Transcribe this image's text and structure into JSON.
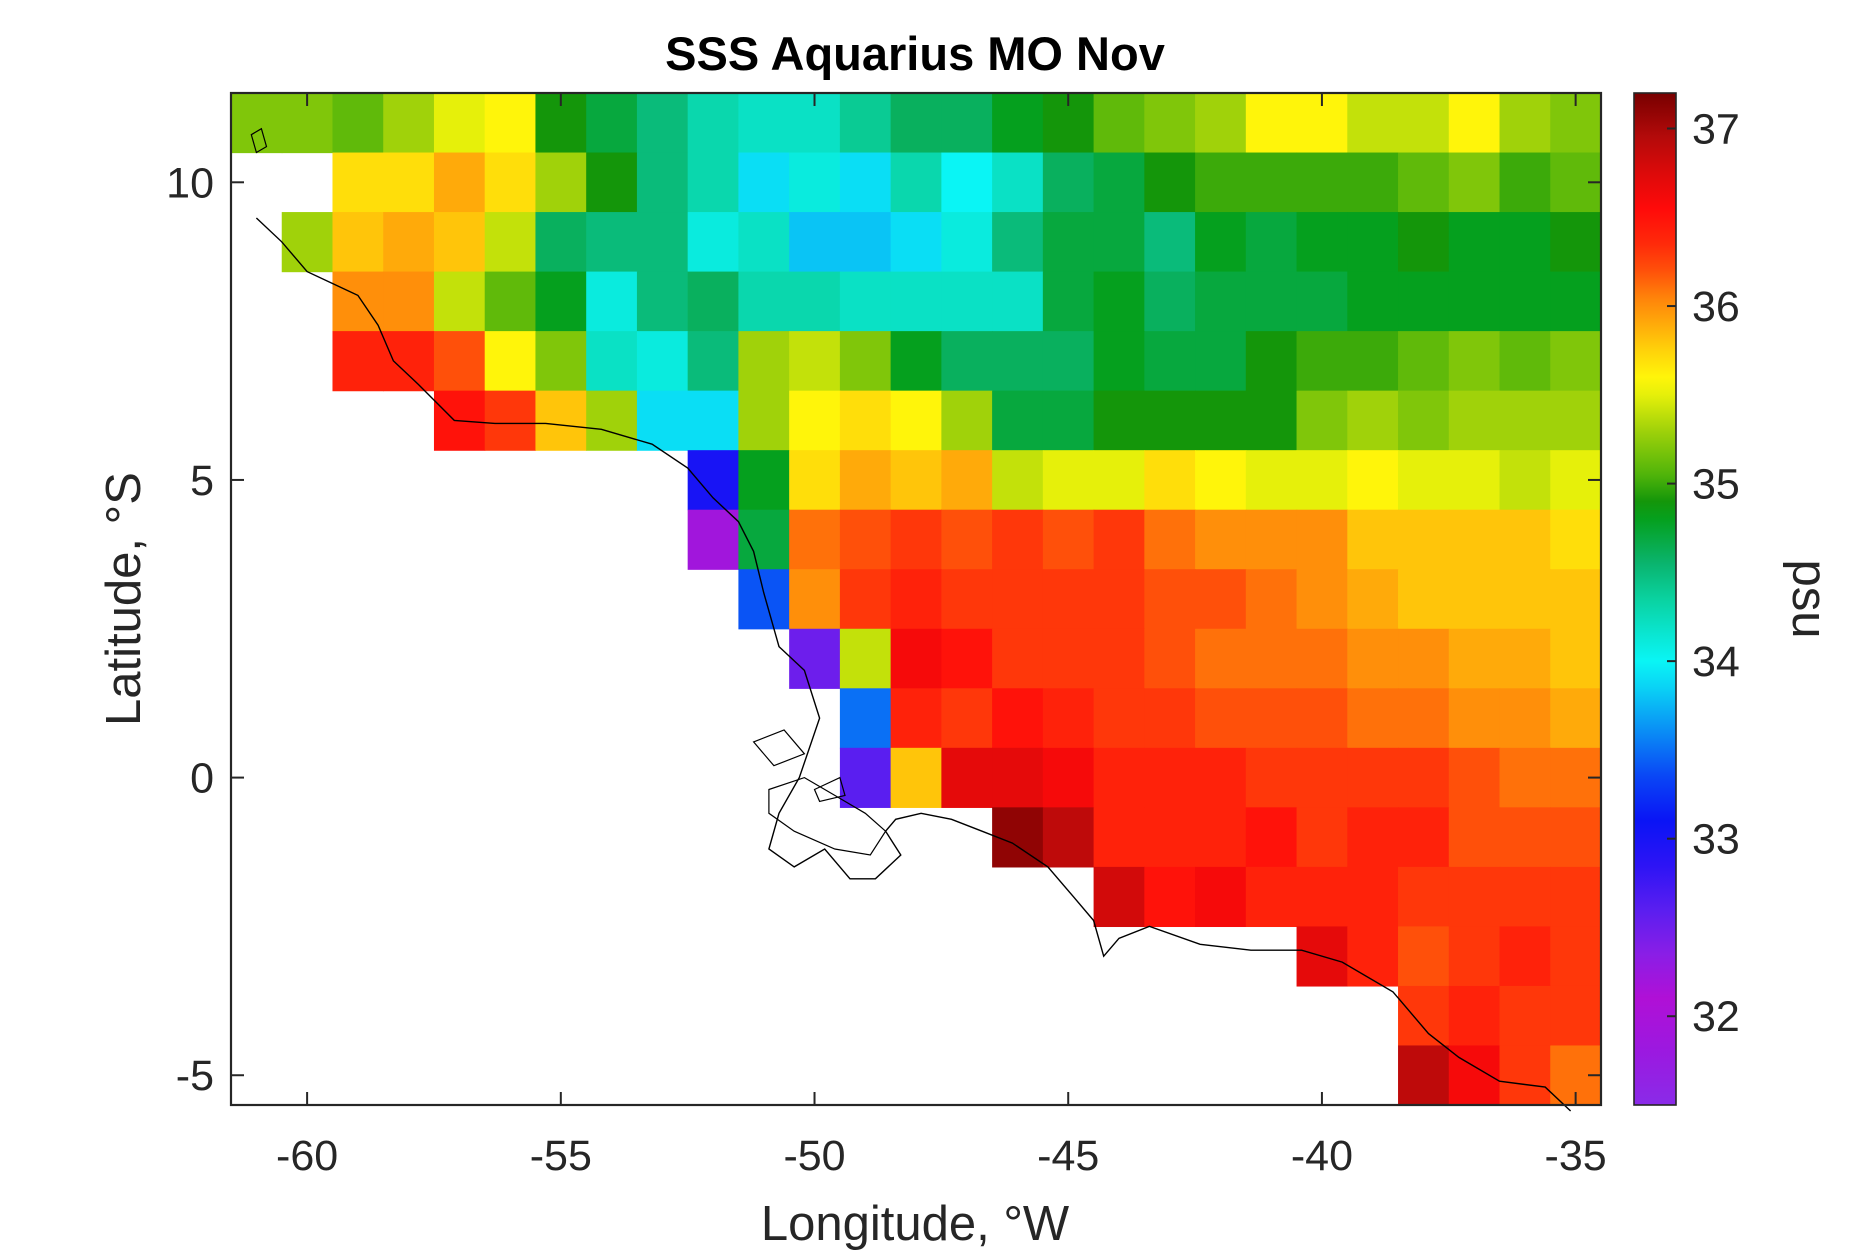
{
  "chart_data": {
    "type": "heatmap",
    "title": "SSS Aquarius MO Nov",
    "xlabel": "Longitude, °W",
    "ylabel": "Latitude, °S",
    "colorbar_label": "psu",
    "xlim": [
      -61.5,
      -34.5
    ],
    "ylim": [
      -5.5,
      11.5
    ],
    "clim": [
      31.5,
      37.2
    ],
    "x_ticks": [
      -60,
      -55,
      -50,
      -45,
      -40,
      -35
    ],
    "y_ticks": [
      -5,
      0,
      5,
      10
    ],
    "colorbar_ticks": [
      32,
      33,
      34,
      35,
      36,
      37
    ],
    "x_tick_labels": [
      "-60",
      "-55",
      "-50",
      "-45",
      "-40",
      "-35"
    ],
    "y_tick_labels": [
      "-5",
      "0",
      "5",
      "10"
    ],
    "colorbar_tick_labels": [
      "32",
      "33",
      "34",
      "35",
      "36",
      "37"
    ],
    "grid": false,
    "cell_size_deg": 1,
    "lon_centers": [
      -61,
      -60,
      -59,
      -58,
      -57,
      -56,
      -55,
      -54,
      -53,
      -52,
      -51,
      -50,
      -49,
      -48,
      -47,
      -46,
      -45,
      -44,
      -43,
      -42,
      -41,
      -40,
      -39,
      -38,
      -37,
      -36,
      -35
    ],
    "lat_centers": [
      11,
      10,
      9,
      8,
      7,
      6,
      5,
      4,
      3,
      2,
      1,
      0,
      -1,
      -2,
      -3,
      -4,
      -5
    ],
    "values": [
      [
        35.2,
        35.2,
        35.1,
        35.3,
        35.5,
        35.6,
        34.9,
        34.7,
        34.5,
        34.3,
        34.2,
        34.2,
        34.4,
        34.6,
        34.6,
        34.8,
        34.9,
        35.1,
        35.2,
        35.3,
        35.6,
        35.6,
        35.4,
        35.4,
        35.6,
        35.3,
        35.2
      ],
      [
        null,
        null,
        35.7,
        35.7,
        35.9,
        35.7,
        35.3,
        34.9,
        34.5,
        34.3,
        33.9,
        34.1,
        33.9,
        34.3,
        34.0,
        34.2,
        34.6,
        34.7,
        34.9,
        35.0,
        35.0,
        35.0,
        35.0,
        35.1,
        35.2,
        35.0,
        35.1
      ],
      [
        null,
        35.3,
        35.8,
        35.9,
        35.8,
        35.4,
        34.6,
        34.5,
        34.5,
        34.1,
        34.2,
        33.8,
        33.8,
        33.9,
        34.1,
        34.5,
        34.7,
        34.7,
        34.5,
        34.8,
        34.7,
        34.8,
        34.8,
        34.9,
        34.8,
        34.8,
        34.9
      ],
      [
        null,
        null,
        36.0,
        36.0,
        35.4,
        35.1,
        34.8,
        34.1,
        34.5,
        34.6,
        34.3,
        34.3,
        34.2,
        34.2,
        34.2,
        34.2,
        34.7,
        34.8,
        34.6,
        34.7,
        34.7,
        34.7,
        34.8,
        34.8,
        34.8,
        34.8,
        34.8
      ],
      [
        null,
        null,
        36.4,
        36.4,
        36.2,
        35.6,
        35.2,
        34.2,
        34.1,
        34.5,
        35.3,
        35.4,
        35.2,
        34.8,
        34.6,
        34.6,
        34.6,
        34.8,
        34.7,
        34.7,
        34.9,
        35.0,
        35.0,
        35.1,
        35.2,
        35.1,
        35.2
      ],
      [
        null,
        null,
        null,
        null,
        36.5,
        36.3,
        35.8,
        35.3,
        33.9,
        33.9,
        35.3,
        35.6,
        35.7,
        35.6,
        35.3,
        34.7,
        34.7,
        34.9,
        34.9,
        34.9,
        34.9,
        35.2,
        35.3,
        35.2,
        35.3,
        35.3,
        35.3
      ],
      [
        null,
        null,
        null,
        null,
        null,
        null,
        null,
        null,
        null,
        33.0,
        34.8,
        35.7,
        35.9,
        35.8,
        35.9,
        35.4,
        35.5,
        35.5,
        35.7,
        35.6,
        35.5,
        35.5,
        35.6,
        35.5,
        35.5,
        35.4,
        35.5
      ],
      [
        null,
        null,
        null,
        null,
        null,
        null,
        null,
        null,
        null,
        32.2,
        34.7,
        36.1,
        36.2,
        36.3,
        36.2,
        36.3,
        36.2,
        36.3,
        36.1,
        36.0,
        36.0,
        36.0,
        35.8,
        35.8,
        35.8,
        35.8,
        35.7
      ],
      [
        null,
        null,
        null,
        null,
        null,
        null,
        null,
        null,
        null,
        null,
        33.4,
        36.0,
        36.3,
        36.4,
        36.3,
        36.3,
        36.3,
        36.3,
        36.2,
        36.2,
        36.1,
        36.0,
        35.9,
        35.8,
        35.8,
        35.8,
        35.8
      ],
      [
        null,
        null,
        null,
        null,
        null,
        null,
        null,
        null,
        null,
        null,
        null,
        32.5,
        35.4,
        36.6,
        36.5,
        36.3,
        36.3,
        36.3,
        36.2,
        36.1,
        36.1,
        36.1,
        36.0,
        36.0,
        35.9,
        35.9,
        35.8
      ],
      [
        null,
        null,
        null,
        null,
        null,
        null,
        null,
        null,
        null,
        null,
        null,
        null,
        33.5,
        36.4,
        36.3,
        36.5,
        36.4,
        36.3,
        36.3,
        36.2,
        36.2,
        36.2,
        36.1,
        36.1,
        36.0,
        36.0,
        35.9
      ],
      [
        null,
        null,
        null,
        null,
        null,
        null,
        null,
        null,
        null,
        null,
        null,
        null,
        32.6,
        35.8,
        36.7,
        36.7,
        36.6,
        36.4,
        36.4,
        36.4,
        36.3,
        36.3,
        36.3,
        36.3,
        36.2,
        36.1,
        36.1
      ],
      [
        null,
        null,
        null,
        null,
        null,
        null,
        null,
        null,
        null,
        null,
        null,
        null,
        null,
        null,
        null,
        37.1,
        36.9,
        36.4,
        36.4,
        36.4,
        36.5,
        36.3,
        36.4,
        36.4,
        36.2,
        36.2,
        36.2
      ],
      [
        null,
        null,
        null,
        null,
        null,
        null,
        null,
        null,
        null,
        null,
        null,
        null,
        null,
        null,
        null,
        null,
        null,
        36.8,
        36.5,
        36.6,
        36.4,
        36.4,
        36.4,
        36.3,
        36.3,
        36.3,
        36.3
      ],
      [
        null,
        null,
        null,
        null,
        null,
        null,
        null,
        null,
        null,
        null,
        null,
        null,
        null,
        null,
        null,
        null,
        null,
        null,
        null,
        null,
        null,
        36.7,
        36.4,
        36.2,
        36.3,
        36.4,
        36.3
      ],
      [
        null,
        null,
        null,
        null,
        null,
        null,
        null,
        null,
        null,
        null,
        null,
        null,
        null,
        null,
        null,
        null,
        null,
        null,
        null,
        null,
        null,
        null,
        null,
        36.3,
        36.4,
        36.3,
        36.3
      ],
      [
        null,
        null,
        null,
        null,
        null,
        null,
        null,
        null,
        null,
        null,
        null,
        null,
        null,
        null,
        null,
        null,
        null,
        null,
        null,
        null,
        null,
        null,
        null,
        36.9,
        36.6,
        36.3,
        36.1
      ]
    ],
    "colormap": [
      [
        31.5,
        "#8a2be8"
      ],
      [
        31.8,
        "#9b19e0"
      ],
      [
        32.1,
        "#b010d6"
      ],
      [
        32.35,
        "#8a1ee6"
      ],
      [
        32.6,
        "#5a1ef0"
      ],
      [
        32.85,
        "#2d14f5"
      ],
      [
        33.1,
        "#0a14f5"
      ],
      [
        33.35,
        "#0a46f5"
      ],
      [
        33.6,
        "#0a8cf5"
      ],
      [
        33.85,
        "#0ad2f5"
      ],
      [
        34.0,
        "#0af5f5"
      ],
      [
        34.15,
        "#0ae6d2"
      ],
      [
        34.35,
        "#0ad2a0"
      ],
      [
        34.55,
        "#0ab46e"
      ],
      [
        34.8,
        "#05a01e"
      ],
      [
        34.9,
        "#14960a"
      ],
      [
        35.05,
        "#50b40a"
      ],
      [
        35.3,
        "#a0d20a"
      ],
      [
        35.5,
        "#e6f00a"
      ],
      [
        35.6,
        "#fff50a"
      ],
      [
        35.75,
        "#ffd20a"
      ],
      [
        35.9,
        "#ffaa0a"
      ],
      [
        36.05,
        "#ff820a"
      ],
      [
        36.2,
        "#ff500a"
      ],
      [
        36.35,
        "#ff2a0a"
      ],
      [
        36.55,
        "#ff0a0a"
      ],
      [
        36.75,
        "#dc0a0a"
      ],
      [
        36.95,
        "#b40a0a"
      ],
      [
        37.2,
        "#780000"
      ]
    ]
  },
  "coastline_lonlat": [
    [
      -61.0,
      9.4
    ],
    [
      -60.5,
      9.0
    ],
    [
      -60.0,
      8.5
    ],
    [
      -59.5,
      8.3
    ],
    [
      -59.0,
      8.1
    ],
    [
      -58.6,
      7.6
    ],
    [
      -58.3,
      7.0
    ],
    [
      -57.8,
      6.6
    ],
    [
      -57.1,
      6.0
    ],
    [
      -56.3,
      5.95
    ],
    [
      -55.3,
      5.95
    ],
    [
      -54.2,
      5.85
    ],
    [
      -53.2,
      5.6
    ],
    [
      -52.5,
      5.2
    ],
    [
      -52.0,
      4.7
    ],
    [
      -51.5,
      4.3
    ],
    [
      -51.2,
      3.8
    ],
    [
      -51.0,
      3.1
    ],
    [
      -50.7,
      2.2
    ],
    [
      -50.2,
      1.8
    ],
    [
      -49.9,
      1.0
    ],
    [
      -50.3,
      0.0
    ],
    [
      -50.7,
      -0.6
    ],
    [
      -50.9,
      -1.2
    ],
    [
      -50.4,
      -1.5
    ],
    [
      -49.8,
      -1.2
    ],
    [
      -49.3,
      -1.7
    ],
    [
      -48.8,
      -1.7
    ],
    [
      -48.3,
      -1.3
    ],
    [
      -48.6,
      -0.9
    ],
    [
      -48.4,
      -0.7
    ],
    [
      -47.9,
      -0.6
    ],
    [
      -47.3,
      -0.7
    ],
    [
      -46.7,
      -0.9
    ],
    [
      -46.1,
      -1.1
    ],
    [
      -45.4,
      -1.5
    ],
    [
      -44.9,
      -2.0
    ],
    [
      -44.5,
      -2.4
    ],
    [
      -44.3,
      -3.0
    ],
    [
      -44.0,
      -2.7
    ],
    [
      -43.4,
      -2.5
    ],
    [
      -42.4,
      -2.8
    ],
    [
      -41.4,
      -2.9
    ],
    [
      -40.4,
      -2.9
    ],
    [
      -39.6,
      -3.1
    ],
    [
      -38.6,
      -3.6
    ],
    [
      -37.9,
      -4.3
    ],
    [
      -37.3,
      -4.7
    ],
    [
      -36.5,
      -5.1
    ],
    [
      -35.6,
      -5.2
    ],
    [
      -35.1,
      -5.6
    ]
  ],
  "islands_lonlat": [
    [
      [
        -50.9,
        -0.2
      ],
      [
        -50.2,
        0.0
      ],
      [
        -49.6,
        -0.3
      ],
      [
        -49.0,
        -0.6
      ],
      [
        -48.6,
        -0.9
      ],
      [
        -48.9,
        -1.3
      ],
      [
        -49.6,
        -1.2
      ],
      [
        -50.4,
        -0.9
      ],
      [
        -50.9,
        -0.6
      ],
      [
        -50.9,
        -0.2
      ]
    ],
    [
      [
        -51.2,
        0.6
      ],
      [
        -50.6,
        0.8
      ],
      [
        -50.2,
        0.4
      ],
      [
        -50.8,
        0.2
      ],
      [
        -51.2,
        0.6
      ]
    ],
    [
      [
        -50.0,
        -0.2
      ],
      [
        -49.5,
        0.0
      ],
      [
        -49.4,
        -0.3
      ],
      [
        -49.9,
        -0.4
      ],
      [
        -50.0,
        -0.2
      ]
    ],
    [
      [
        -61.1,
        10.8
      ],
      [
        -60.9,
        10.9
      ],
      [
        -60.8,
        10.6
      ],
      [
        -61.0,
        10.5
      ],
      [
        -61.1,
        10.8
      ]
    ]
  ]
}
